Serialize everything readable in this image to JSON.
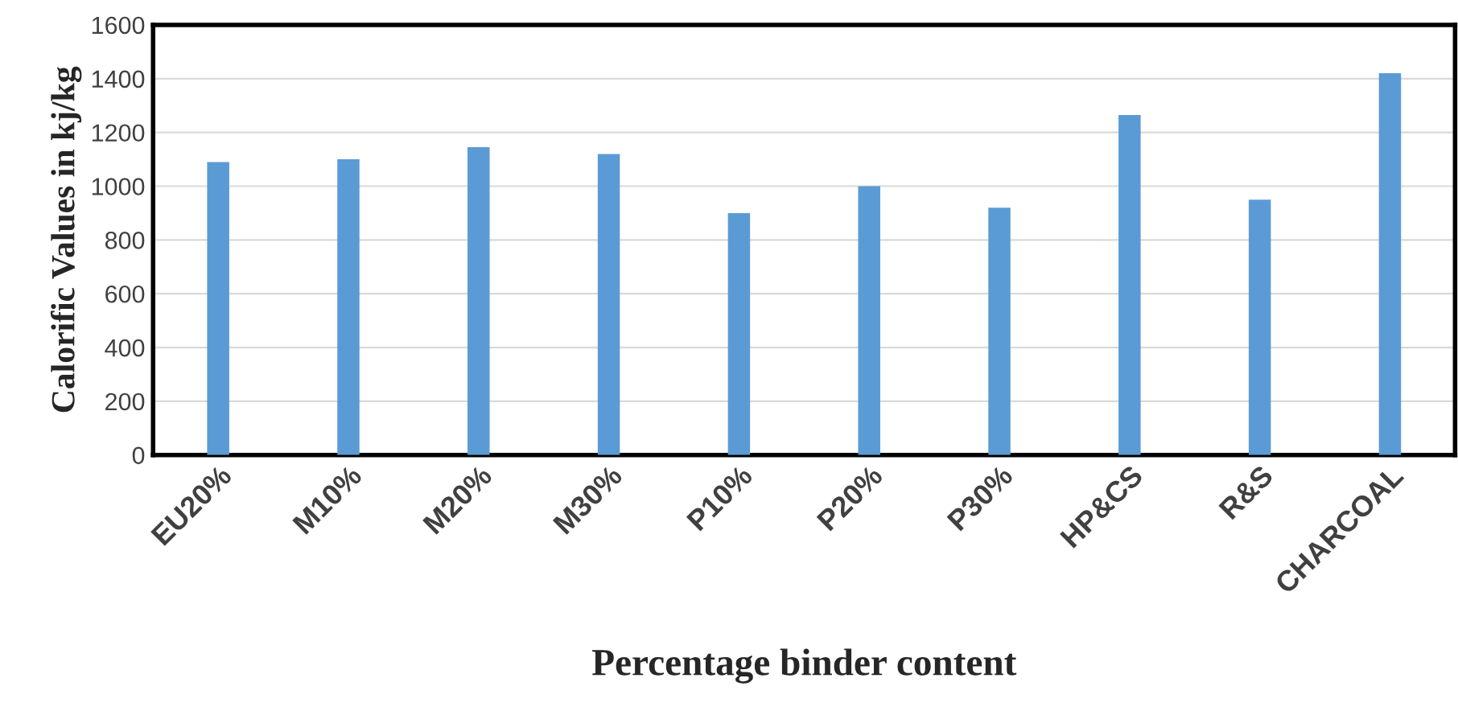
{
  "chart_data": {
    "type": "bar",
    "xlabel": "Percentage binder content",
    "ylabel": "Calorific Values in kj/kg",
    "categories": [
      "EU20%",
      "M10%",
      "M20%",
      "M30%",
      "P10%",
      "P20%",
      "P30%",
      "HP&CS",
      "R&S",
      "CHARCOAL"
    ],
    "values": [
      1090,
      1100,
      1145,
      1120,
      900,
      1000,
      920,
      1265,
      950,
      1420
    ],
    "color": "#5b9bd5",
    "ylim": [
      0,
      1600
    ],
    "yticks": [
      0,
      200,
      400,
      600,
      800,
      1000,
      1200,
      1400,
      1600
    ],
    "grid": "y",
    "legend": false
  }
}
